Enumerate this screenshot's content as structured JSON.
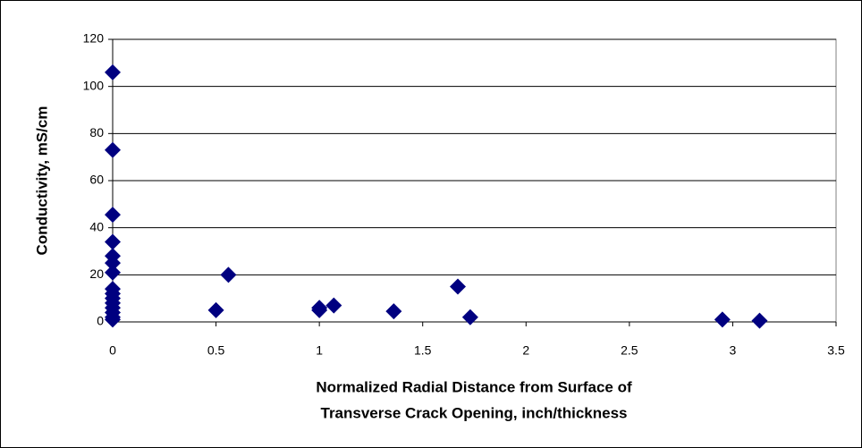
{
  "chart_data": {
    "type": "scatter",
    "x_label": [
      "Normalized Radial Distance from Surface of",
      "Transverse Crack Opening, inch/thickness"
    ],
    "y_label": "Conductivity, mS/cm",
    "series": [
      {
        "name": "Conductivity",
        "color": "#000080",
        "x": [
          0,
          0,
          0,
          0,
          0,
          0,
          0,
          0,
          0,
          0,
          0,
          0,
          0,
          0,
          0,
          0.5,
          0.56,
          1,
          1,
          1.07,
          1.36,
          1.67,
          1.73,
          2.95,
          3.13
        ],
        "values": [
          106,
          73,
          45.5,
          34,
          28,
          25,
          21,
          14,
          12,
          10,
          8,
          6,
          4,
          2,
          1,
          5,
          20,
          5,
          6,
          7,
          4.5,
          15,
          2,
          1,
          0.5
        ]
      }
    ],
    "xlim": [
      0,
      3.5
    ],
    "xticks": [
      0,
      0.5,
      1,
      1.5,
      2,
      2.5,
      3,
      3.5
    ],
    "ylim": [
      0,
      120
    ],
    "yticks": [
      0,
      20,
      40,
      60,
      80,
      100,
      120
    ],
    "grid": true
  }
}
